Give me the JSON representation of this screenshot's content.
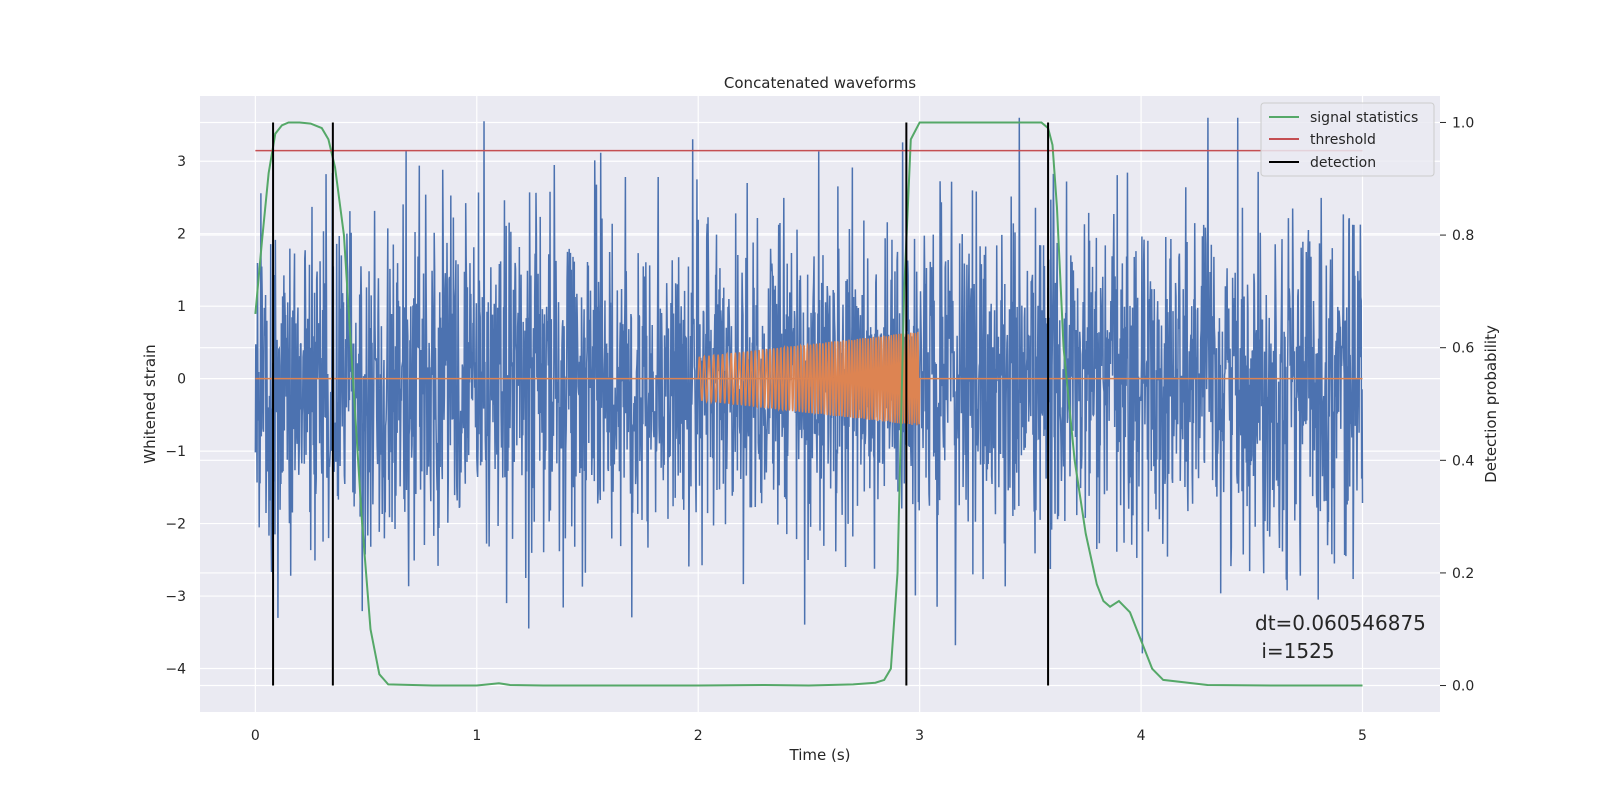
{
  "chart_data": {
    "type": "line",
    "title": "Concatenated waveforms",
    "xlabel": "Time (s)",
    "ylabel": "Whitened strain",
    "y2label": "Detection probability",
    "xlim": [
      -0.25,
      5.35
    ],
    "ylim": [
      -4.6,
      3.9
    ],
    "y2lim": [
      -0.047,
      1.047
    ],
    "xticks": [
      "0",
      "1",
      "2",
      "3",
      "4",
      "5"
    ],
    "yticks": [
      "−4",
      "−3",
      "−2",
      "−1",
      "0",
      "1",
      "2",
      "3"
    ],
    "y2ticks": [
      "0.0",
      "0.2",
      "0.4",
      "0.6",
      "0.8",
      "1.0"
    ],
    "grid": true,
    "legend_position": "upper-right",
    "legend": [
      "signal statistics",
      "threshold",
      "detection"
    ],
    "colors": {
      "strain": "#4c72b0",
      "injection": "#dd8452",
      "statistic": "#55a868",
      "threshold": "#c44e52",
      "detection": "#000000",
      "background": "#eaeaf2"
    },
    "series": [
      {
        "name": "signal statistics",
        "axis": "right",
        "x": [
          0.0,
          0.03,
          0.06,
          0.09,
          0.12,
          0.15,
          0.2,
          0.25,
          0.3,
          0.33,
          0.36,
          0.4,
          0.44,
          0.48,
          0.52,
          0.56,
          0.6,
          0.8,
          1.0,
          1.05,
          1.1,
          1.15,
          1.3,
          1.6,
          2.0,
          2.3,
          2.5,
          2.7,
          2.8,
          2.84,
          2.87,
          2.9,
          2.93,
          2.96,
          3.0,
          3.2,
          3.4,
          3.55,
          3.58,
          3.6,
          3.62,
          3.65,
          3.7,
          3.75,
          3.8,
          3.83,
          3.86,
          3.9,
          3.95,
          4.0,
          4.05,
          4.1,
          4.3,
          4.6,
          5.0
        ],
        "y": [
          0.66,
          0.79,
          0.91,
          0.98,
          0.995,
          1.0,
          1.0,
          0.998,
          0.99,
          0.97,
          0.92,
          0.8,
          0.55,
          0.3,
          0.1,
          0.02,
          0.002,
          0.0,
          0.0,
          0.002,
          0.004,
          0.001,
          0.0,
          0.0,
          0.0,
          0.001,
          0.0,
          0.002,
          0.005,
          0.01,
          0.03,
          0.2,
          0.7,
          0.97,
          1.0,
          1.0,
          1.0,
          1.0,
          0.99,
          0.96,
          0.85,
          0.6,
          0.4,
          0.27,
          0.18,
          0.15,
          0.14,
          0.15,
          0.13,
          0.08,
          0.03,
          0.01,
          0.001,
          0.0,
          0.0
        ]
      },
      {
        "name": "threshold",
        "axis": "right",
        "x": [
          0,
          5
        ],
        "y": [
          0.95,
          0.95
        ]
      }
    ],
    "detections": [
      0.08,
      0.35,
      2.94,
      3.58
    ],
    "strain": {
      "x_range": [
        0,
        5
      ],
      "typical_amplitude": 1.2,
      "max": 3.6,
      "min": -4.2
    },
    "injection": {
      "x_range": [
        2.0,
        3.0
      ],
      "amplitude_start": 0.3,
      "amplitude_end": 0.65
    },
    "annotations": [
      "dt=0.060546875",
      " i=1525"
    ]
  }
}
